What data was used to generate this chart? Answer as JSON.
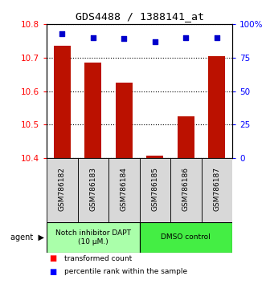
{
  "title": "GDS4488 / 1388141_at",
  "samples": [
    "GSM786182",
    "GSM786183",
    "GSM786184",
    "GSM786185",
    "GSM786186",
    "GSM786187"
  ],
  "red_values": [
    10.735,
    10.685,
    10.625,
    10.408,
    10.525,
    10.705
  ],
  "blue_values": [
    93,
    90,
    89,
    87,
    90,
    90
  ],
  "ylim_left": [
    10.4,
    10.8
  ],
  "ylim_right": [
    0,
    100
  ],
  "yticks_left": [
    10.4,
    10.5,
    10.6,
    10.7,
    10.8
  ],
  "yticks_right": [
    0,
    25,
    50,
    75,
    100
  ],
  "ytick_labels_right": [
    "0",
    "25",
    "50",
    "75",
    "100%"
  ],
  "group0_label": "Notch inhibitor DAPT\n(10 μM.)",
  "group1_label": "DMSO control",
  "group0_color": "#aaffaa",
  "group1_color": "#44ee44",
  "bar_color": "#BB1100",
  "dot_color": "#0000CC",
  "bar_width": 0.55,
  "background_color": "#ffffff",
  "legend_red": "transformed count",
  "legend_blue": "percentile rank within the sample"
}
